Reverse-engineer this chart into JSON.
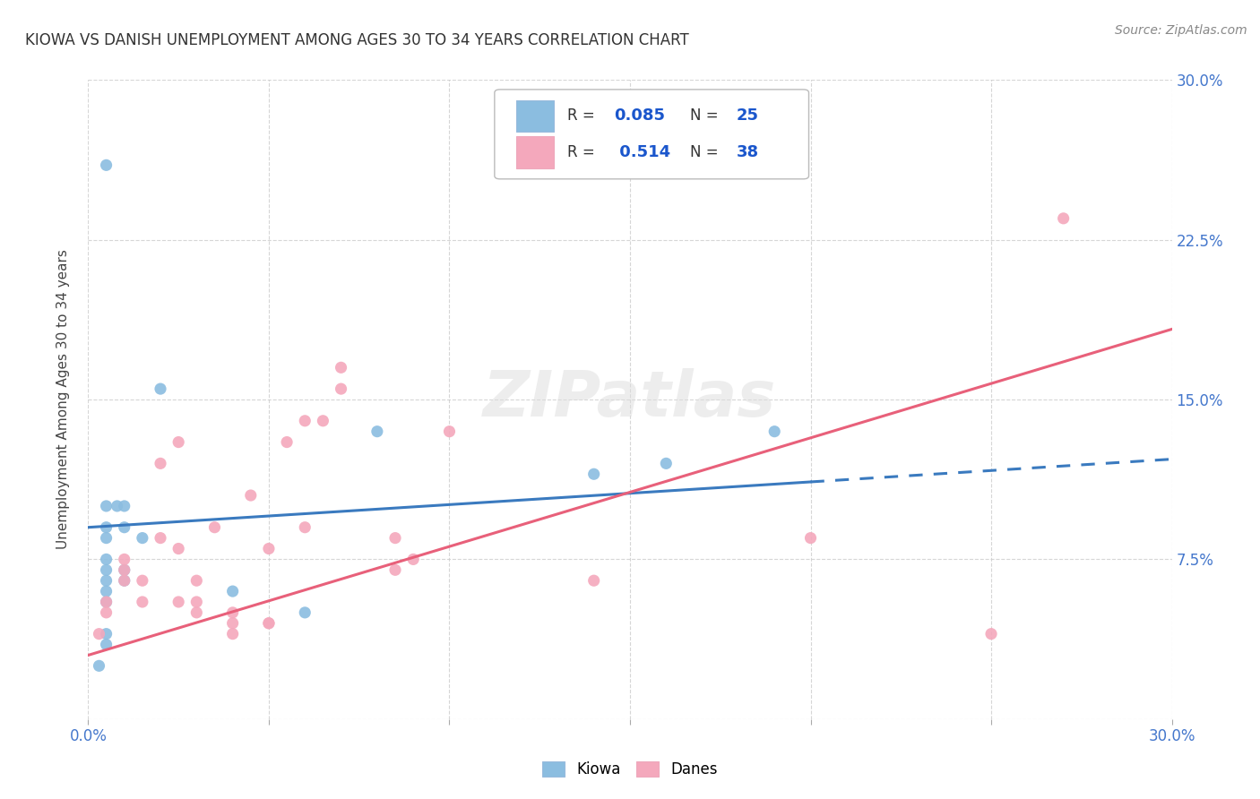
{
  "title": "KIOWA VS DANISH UNEMPLOYMENT AMONG AGES 30 TO 34 YEARS CORRELATION CHART",
  "source": "Source: ZipAtlas.com",
  "ylabel": "Unemployment Among Ages 30 to 34 years",
  "xlim": [
    0,
    0.3
  ],
  "ylim": [
    0,
    0.3
  ],
  "xtick_labels": [
    "0.0%",
    "",
    "",
    "",
    "",
    "",
    "30.0%"
  ],
  "ytick_right_labels": [
    "",
    "7.5%",
    "15.0%",
    "22.5%",
    "30.0%"
  ],
  "kiowa_color": "#8bbde0",
  "danes_color": "#f4a8bc",
  "kiowa_line_color": "#3a7abf",
  "danes_line_color": "#e8607a",
  "legend_color": "#1a56cc",
  "background_color": "#ffffff",
  "grid_color": "#cccccc",
  "kiowa_x": [
    0.003,
    0.005,
    0.005,
    0.005,
    0.005,
    0.005,
    0.005,
    0.005,
    0.005,
    0.008,
    0.01,
    0.01,
    0.01,
    0.01,
    0.015,
    0.02,
    0.04,
    0.06,
    0.08,
    0.14,
    0.16,
    0.19,
    0.005,
    0.005,
    0.005
  ],
  "kiowa_y": [
    0.025,
    0.04,
    0.06,
    0.065,
    0.07,
    0.075,
    0.085,
    0.09,
    0.1,
    0.1,
    0.065,
    0.07,
    0.09,
    0.1,
    0.085,
    0.155,
    0.06,
    0.05,
    0.135,
    0.115,
    0.12,
    0.135,
    0.035,
    0.055,
    0.26
  ],
  "danes_x": [
    0.003,
    0.005,
    0.005,
    0.01,
    0.01,
    0.01,
    0.015,
    0.015,
    0.02,
    0.02,
    0.025,
    0.025,
    0.025,
    0.03,
    0.03,
    0.03,
    0.035,
    0.04,
    0.04,
    0.04,
    0.045,
    0.05,
    0.05,
    0.05,
    0.055,
    0.06,
    0.06,
    0.065,
    0.07,
    0.07,
    0.085,
    0.085,
    0.09,
    0.1,
    0.14,
    0.2,
    0.25,
    0.27
  ],
  "danes_y": [
    0.04,
    0.05,
    0.055,
    0.065,
    0.07,
    0.075,
    0.055,
    0.065,
    0.085,
    0.12,
    0.055,
    0.08,
    0.13,
    0.05,
    0.055,
    0.065,
    0.09,
    0.04,
    0.045,
    0.05,
    0.105,
    0.045,
    0.045,
    0.08,
    0.13,
    0.09,
    0.14,
    0.14,
    0.155,
    0.165,
    0.07,
    0.085,
    0.075,
    0.135,
    0.065,
    0.085,
    0.04,
    0.235
  ],
  "kiowa_line_x0": 0.0,
  "kiowa_line_y0": 0.09,
  "kiowa_line_x1": 0.3,
  "kiowa_line_y1": 0.122,
  "kiowa_dash_break": 0.2,
  "danes_line_x0": 0.0,
  "danes_line_y0": 0.03,
  "danes_line_x1": 0.3,
  "danes_line_y1": 0.183,
  "watermark": "ZIPatlas",
  "watermark_fontsize": 52
}
